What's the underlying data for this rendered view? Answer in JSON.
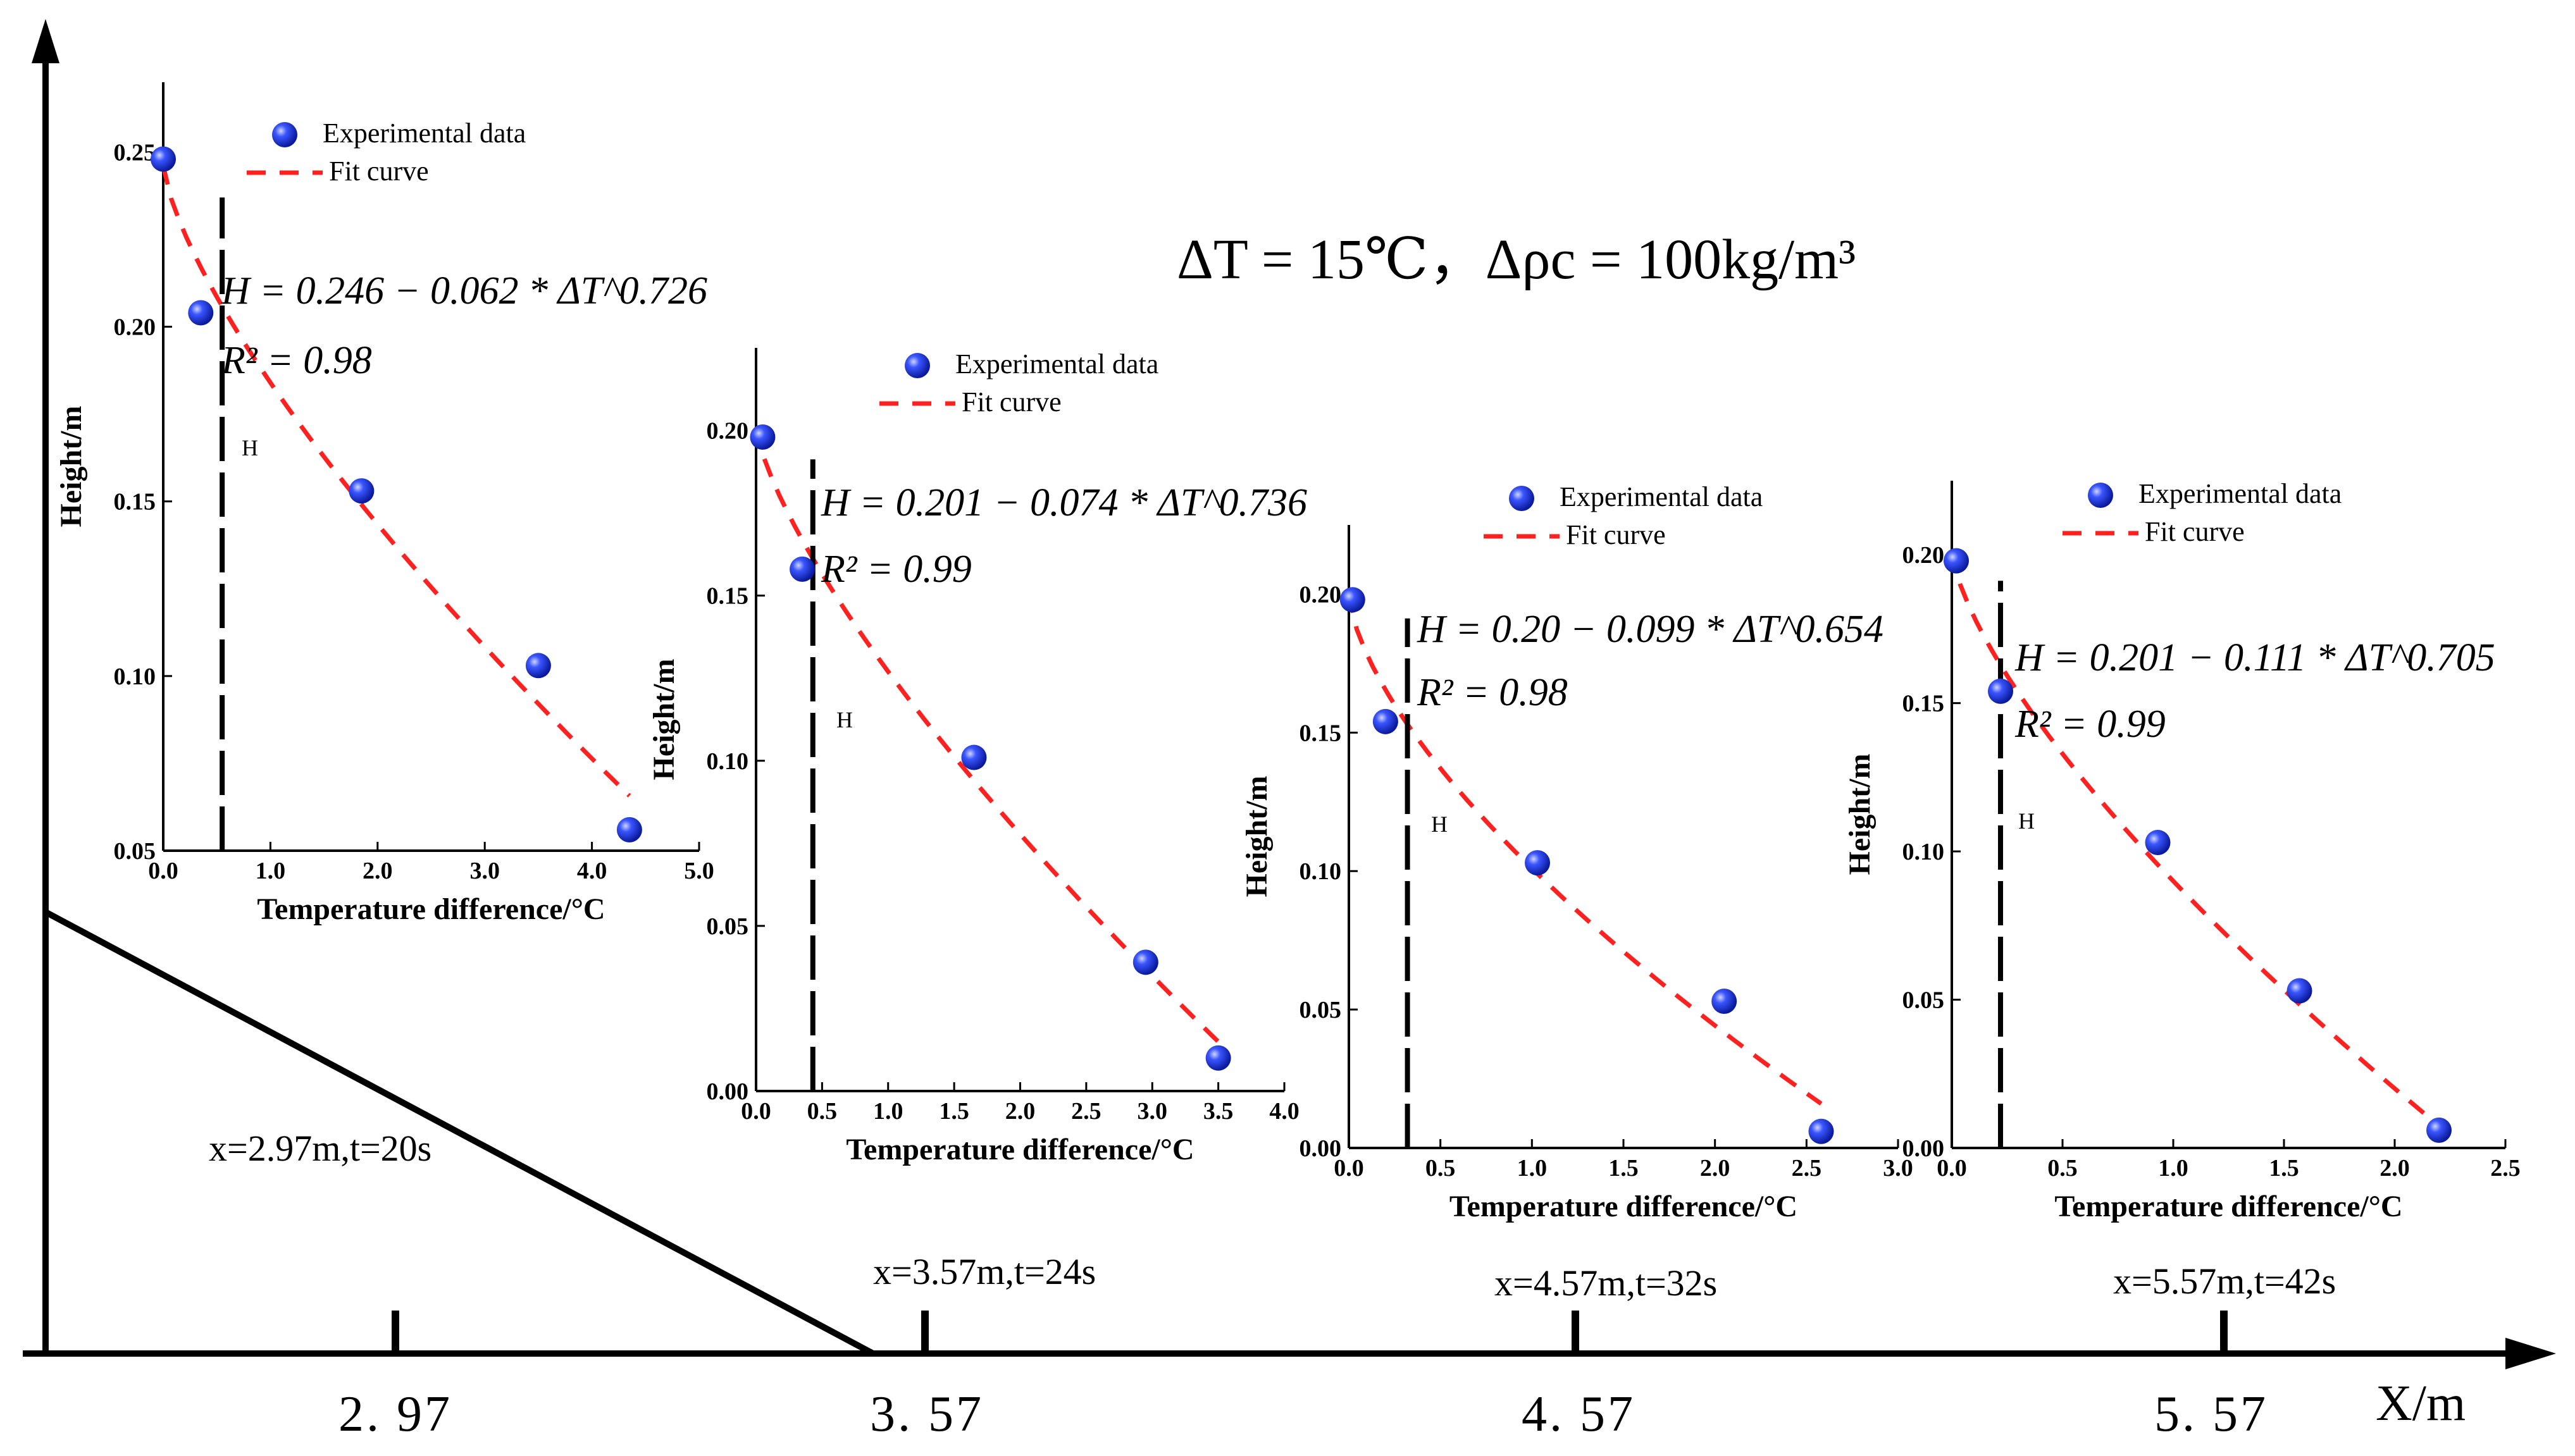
{
  "header": {
    "title": "ΔT = 15℃，Δρc = 100kg/m³"
  },
  "main_axis": {
    "xlabel": "X/m",
    "ticks": [
      "2. 97",
      "3. 57",
      "4. 57",
      "5. 57"
    ],
    "tick_values": [
      2.97,
      3.57,
      4.57,
      5.57
    ]
  },
  "colors": {
    "point": "#1f3dff",
    "fit": "#ff2020",
    "axis": "#000000"
  },
  "chart_data": [
    {
      "type": "scatter",
      "location_label": "x=2.97m,t=20s",
      "xlabel": "Temperature difference/°C",
      "ylabel": "Height/m",
      "xlim": [
        0,
        5.0
      ],
      "ylim": [
        0.05,
        0.27
      ],
      "xticks": [
        0.0,
        1.0,
        2.0,
        3.0,
        4.0,
        5.0
      ],
      "xtick_labels": [
        "0.0",
        "1.0",
        "2.0",
        "3.0",
        "4.0",
        "5.0"
      ],
      "yticks": [
        0.05,
        0.1,
        0.15,
        0.2,
        0.25
      ],
      "ytick_labels": [
        "0.05",
        "0.10",
        "0.15",
        "0.20",
        "0.25"
      ],
      "x": [
        0.0,
        0.35,
        1.85,
        3.5,
        4.35
      ],
      "y": [
        0.248,
        0.204,
        0.153,
        0.103,
        0.056
      ],
      "fit": {
        "a": 0.246,
        "b": 0.062,
        "n": 0.726,
        "x_end": 4.35,
        "equation": "H = 0.246 − 0.062 * ΔT^0.726",
        "r2": "R² = 0.98"
      },
      "h_marker_x": 0.55,
      "h_label": "H",
      "legend": {
        "points": "Experimental data",
        "fit": "Fit curve"
      }
    },
    {
      "type": "scatter",
      "location_label": "x=3.57m,t=24s",
      "xlabel": "Temperature difference/°C",
      "ylabel": "Height/m",
      "xlim": [
        0,
        4.0
      ],
      "ylim": [
        0.0,
        0.225
      ],
      "xticks": [
        0.0,
        0.5,
        1.0,
        1.5,
        2.0,
        2.5,
        3.0,
        3.5,
        4.0
      ],
      "xtick_labels": [
        "0.0",
        "0.5",
        "1.0",
        "1.5",
        "2.0",
        "2.5",
        "3.0",
        "3.5",
        "4.0"
      ],
      "yticks": [
        0.0,
        0.05,
        0.1,
        0.15,
        0.2
      ],
      "ytick_labels": [
        "0.00",
        "0.05",
        "0.10",
        "0.15",
        "0.20"
      ],
      "x": [
        0.05,
        0.35,
        1.65,
        2.95,
        3.5
      ],
      "y": [
        0.198,
        0.158,
        0.101,
        0.039,
        0.01
      ],
      "fit": {
        "a": 0.201,
        "b": 0.074,
        "n": 0.736,
        "x_end": 3.5,
        "equation": "H = 0.201 − 0.074 * ΔT^0.736",
        "r2": "R² = 0.99"
      },
      "h_marker_x": 0.43,
      "h_label": "H",
      "legend": {
        "points": "Experimental data",
        "fit": "Fit curve"
      }
    },
    {
      "type": "scatter",
      "location_label": "x=4.57m,t=32s",
      "xlabel": "Temperature difference/°C",
      "ylabel": "Height/m",
      "xlim": [
        0,
        3.0
      ],
      "ylim": [
        0.0,
        0.225
      ],
      "xticks": [
        0.0,
        0.5,
        1.0,
        1.5,
        2.0,
        2.5,
        3.0
      ],
      "xtick_labels": [
        "0.0",
        "0.5",
        "1.0",
        "1.5",
        "2.0",
        "2.5",
        "3.0"
      ],
      "yticks": [
        0.0,
        0.05,
        0.1,
        0.15,
        0.2
      ],
      "ytick_labels": [
        "0.00",
        "0.05",
        "0.10",
        "0.15",
        "0.20"
      ],
      "x": [
        0.02,
        0.2,
        1.03,
        2.05,
        2.58
      ],
      "y": [
        0.198,
        0.154,
        0.103,
        0.053,
        0.006
      ],
      "fit": {
        "a": 0.2,
        "b": 0.099,
        "n": 0.654,
        "x_end": 2.58,
        "equation": "H = 0.20 − 0.099 * ΔT^0.654",
        "r2": "R² = 0.98"
      },
      "h_marker_x": 0.32,
      "h_label": "H",
      "legend": {
        "points": "Experimental data",
        "fit": "Fit curve"
      }
    },
    {
      "type": "scatter",
      "location_label": "x=5.57m,t=42s",
      "xlabel": "Temperature difference/°C",
      "ylabel": "Height/m",
      "xlim": [
        0,
        2.5
      ],
      "ylim": [
        0.0,
        0.225
      ],
      "xticks": [
        0.0,
        0.5,
        1.0,
        1.5,
        2.0,
        2.5
      ],
      "xtick_labels": [
        "0.0",
        "0.5",
        "1.0",
        "1.5",
        "2.0",
        "2.5"
      ],
      "yticks": [
        0.0,
        0.05,
        0.1,
        0.15,
        0.2
      ],
      "ytick_labels": [
        "0.00",
        "0.05",
        "0.10",
        "0.15",
        "0.20"
      ],
      "x": [
        0.02,
        0.22,
        0.93,
        1.57,
        2.2
      ],
      "y": [
        0.198,
        0.154,
        0.103,
        0.053,
        0.006
      ],
      "fit": {
        "a": 0.201,
        "b": 0.111,
        "n": 0.705,
        "x_end": 2.2,
        "equation": "H = 0.201 − 0.111 * ΔT^0.705",
        "r2": "R² = 0.99"
      },
      "h_marker_x": 0.22,
      "h_label": "H",
      "legend": {
        "points": "Experimental data",
        "fit": "Fit curve"
      }
    }
  ]
}
